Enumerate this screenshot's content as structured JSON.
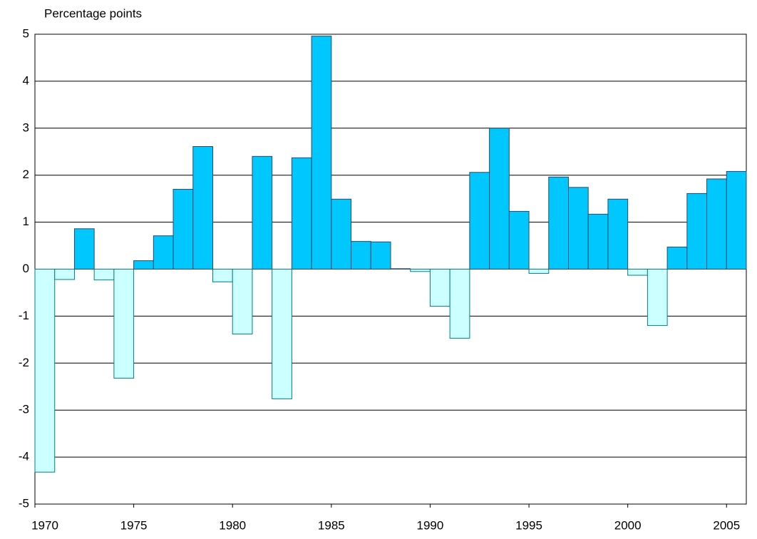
{
  "chart_data": {
    "type": "bar",
    "y_label": "Percentage points",
    "x": [
      1970,
      1971,
      1972,
      1973,
      1974,
      1975,
      1976,
      1977,
      1978,
      1979,
      1980,
      1981,
      1982,
      1983,
      1984,
      1985,
      1986,
      1987,
      1988,
      1989,
      1990,
      1991,
      1992,
      1993,
      1994,
      1995,
      1996,
      1997,
      1998,
      1999,
      2000,
      2001,
      2002,
      2003,
      2004,
      2005
    ],
    "values": [
      -4.32,
      -0.22,
      0.86,
      -0.23,
      -2.32,
      0.18,
      0.71,
      1.7,
      2.61,
      -0.27,
      -1.38,
      2.4,
      -2.76,
      2.37,
      4.96,
      1.49,
      0.59,
      0.58,
      0.01,
      -0.05,
      -0.79,
      -1.47,
      2.06,
      3.0,
      1.23,
      -0.09,
      1.96,
      1.74,
      1.17,
      1.49,
      -0.13,
      -1.2,
      0.47,
      1.61,
      1.92,
      2.08
    ],
    "positive_color": "#00c8ff",
    "negative_color": "#ccffff",
    "xlim": [
      1970,
      2006
    ],
    "xticks": [
      1970,
      1975,
      1980,
      1985,
      1990,
      1995,
      2000,
      2005
    ],
    "ylim": [
      -5,
      5
    ],
    "yticks": [
      -5,
      -4,
      -3,
      -2,
      -1,
      0,
      1,
      2,
      3,
      4,
      5
    ],
    "grid": true
  }
}
